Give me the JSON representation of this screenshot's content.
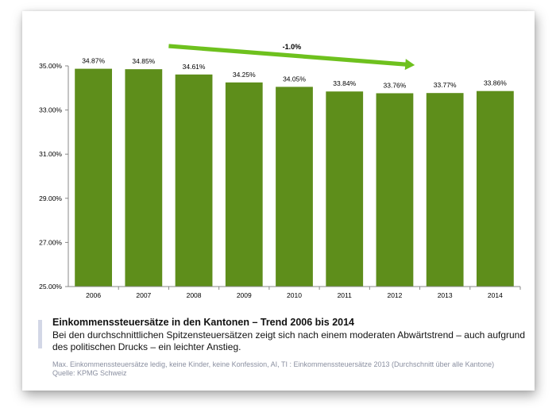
{
  "chart_data": {
    "type": "bar",
    "categories": [
      "2006",
      "2007",
      "2008",
      "2009",
      "2010",
      "2011",
      "2012",
      "2013",
      "2014"
    ],
    "values": [
      34.87,
      34.85,
      34.61,
      34.25,
      34.05,
      33.84,
      33.76,
      33.77,
      33.86
    ],
    "value_labels": [
      "34.87%",
      "34.85%",
      "34.61%",
      "34.25%",
      "34.05%",
      "33.84%",
      "33.76%",
      "33.77%",
      "33.86%"
    ],
    "yticks": [
      "25.00%",
      "27.00%",
      "29.00%",
      "31.00%",
      "33.00%",
      "35.00%"
    ],
    "ylim": [
      25,
      35
    ],
    "annotation": "-1.0%",
    "colors": {
      "bar": "#5e8e1b",
      "arrow": "#6ec11e"
    },
    "grid": false
  },
  "caption": {
    "title": "Einkommenssteuersätze in den Kantonen – Trend 2006 bis 2014",
    "text": "Bei den durchschnittlichen Spitzensteuersätzen zeigt sich nach einem moderaten Abwärtstrend – auch aufgrund des politischen Drucks – ein leichter Anstieg."
  },
  "note": {
    "line1": "Max. Einkommenssteuersätze ledig, keine Kinder, keine Konfession, AI, TI : Einkommenssteuersätze 2013 (Durchschnitt über alle Kantone)",
    "line2": "Quelle: KPMG Schweiz"
  }
}
